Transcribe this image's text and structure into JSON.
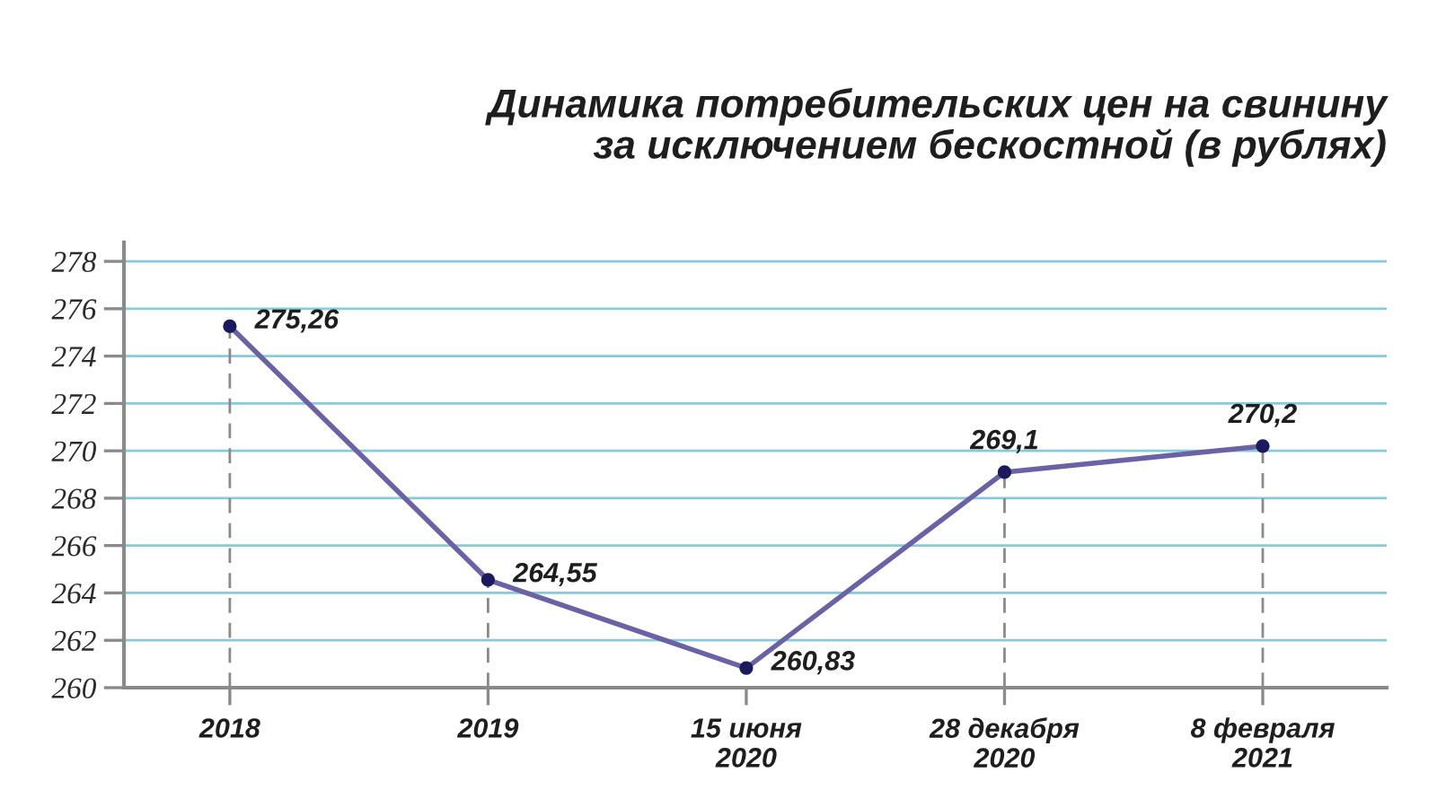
{
  "chart_data": {
    "type": "line",
    "title": "Динамика потребительских цен на свинину\nза исключением бескостной (в рублях)",
    "categories": [
      "2018",
      "2019",
      "15 июня\n2020",
      "28 декабря\n2020",
      "8 февраля\n2021"
    ],
    "series": [
      {
        "color": "#6a62a4",
        "colors": [
          "#1c1a5e",
          "#1c1a5e",
          "#1c1a5e",
          "#1c1a5e",
          "#1c1a5e"
        ],
        "values": [
          275.26,
          264.55,
          260.83,
          269.1,
          270.2
        ],
        "value_labels": [
          "275,26",
          "264,55",
          "260,83",
          "269,1",
          "270,2"
        ],
        "errors": [
          [
            260,
            275.26
          ],
          [
            260,
            264.55
          ],
          null,
          [
            260,
            269.1
          ],
          [
            260,
            270.2
          ]
        ]
      }
    ],
    "ylim": [
      260,
      278.8
    ],
    "yticks": [
      260,
      262,
      264,
      266,
      268,
      270,
      272,
      274,
      276,
      278
    ],
    "grid": "y",
    "marker": "circle",
    "line_style": "solid"
  }
}
